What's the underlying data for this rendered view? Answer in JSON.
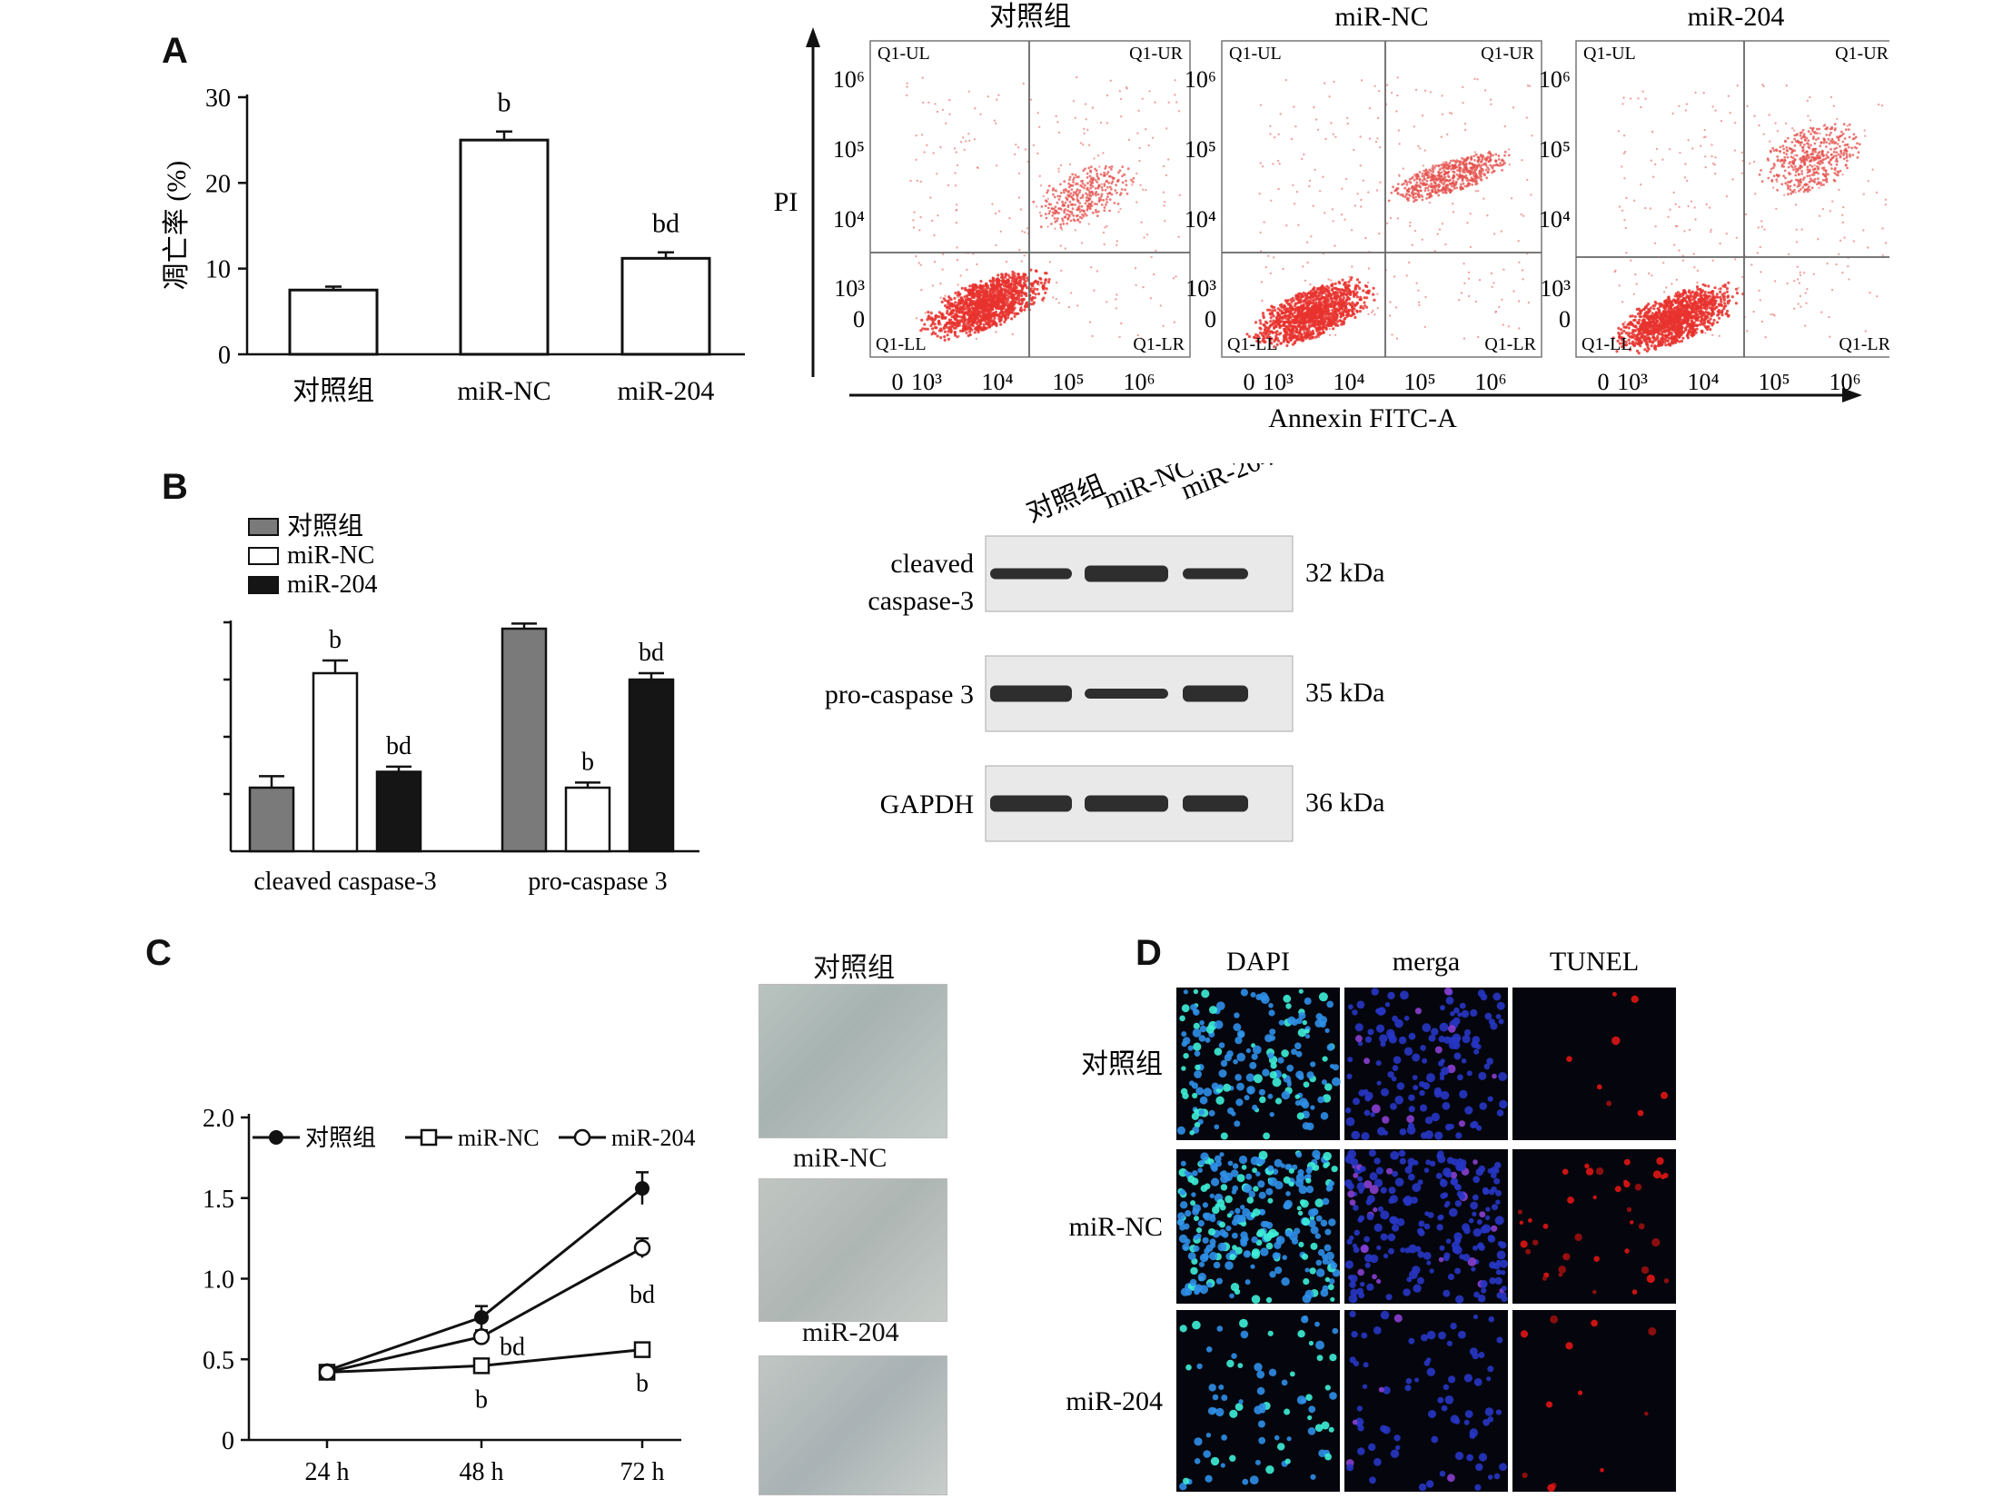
{
  "panels": {
    "a": "A",
    "b": "B",
    "c": "C",
    "d": "D"
  },
  "groups": [
    "对照组",
    "miR-NC",
    "miR-204"
  ],
  "chart_data": [
    {
      "id": "A-bar",
      "type": "bar",
      "categories": [
        "对照组",
        "miR-NC",
        "miR-204"
      ],
      "values": [
        7.5,
        25,
        11.2
      ],
      "errors": [
        0.4,
        1.0,
        0.7
      ],
      "annotations": [
        "",
        "b",
        "bd"
      ],
      "ylabel": "凋亡率 (%)",
      "yticks": [
        0,
        10,
        20,
        30
      ],
      "ylim": [
        0,
        30
      ]
    },
    {
      "id": "A-flow",
      "type": "scatter",
      "panels": [
        "对照组",
        "miR-NC",
        "miR-204"
      ],
      "xlabel": "Annexin FITC-A",
      "ylabel": "PI",
      "quadrants": [
        "Q1-UL",
        "Q1-UR",
        "Q1-LL",
        "Q1-LR"
      ],
      "ticks": [
        "0",
        "10³",
        "10⁴",
        "10⁵",
        "10⁶"
      ]
    },
    {
      "id": "B-bar",
      "type": "bar",
      "categories": [
        "cleaved caspase-3",
        "pro-caspase 3"
      ],
      "series": [
        {
          "name": "对照组",
          "color": "#7a7a7a",
          "values": [
            1.0,
            3.5
          ],
          "errors": [
            0.18,
            0.08
          ]
        },
        {
          "name": "miR-NC",
          "color": "#ffffff",
          "values": [
            2.8,
            1.0
          ],
          "errors": [
            0.2,
            0.08
          ]
        },
        {
          "name": "miR-204",
          "color": "#151515",
          "values": [
            1.25,
            2.7
          ],
          "errors": [
            0.08,
            0.1
          ]
        }
      ],
      "annotations": [
        [
          "",
          "b",
          "bd"
        ],
        [
          "",
          "b",
          "bd"
        ]
      ],
      "ylim": [
        0,
        3.6
      ],
      "legend": "top-left"
    },
    {
      "id": "C-line",
      "type": "line",
      "x": [
        "24 h",
        "48 h",
        "72 h"
      ],
      "series": [
        {
          "name": "对照组",
          "marker": "filled-circle",
          "values": [
            0.43,
            0.76,
            1.56
          ],
          "errors": [
            0.03,
            0.07,
            0.1
          ]
        },
        {
          "name": "miR-NC",
          "marker": "open-square",
          "values": [
            0.42,
            0.46,
            0.56
          ],
          "errors": [
            0.02,
            0.02,
            0.02
          ]
        },
        {
          "name": "miR-204",
          "marker": "open-circle",
          "values": [
            0.42,
            0.64,
            1.19
          ],
          "errors": [
            0.02,
            0.04,
            0.06
          ]
        }
      ],
      "annotations": [
        {
          "series": "miR-204",
          "x": "48 h",
          "text": "bd"
        },
        {
          "series": "miR-NC",
          "x": "48 h",
          "text": "b"
        },
        {
          "series": "miR-204",
          "x": "72 h",
          "text": "bd"
        },
        {
          "series": "miR-NC",
          "x": "72 h",
          "text": "b"
        }
      ],
      "yticks": [
        0,
        0.5,
        1.0,
        1.5,
        2.0
      ],
      "ytick_labels": [
        "0",
        "0.5",
        "1.0",
        "1.5",
        "2.0"
      ],
      "ylim": [
        0,
        2.0
      ],
      "legend": "top"
    }
  ],
  "western": {
    "rows": [
      {
        "label1": "cleaved",
        "label2": "caspase-3",
        "kda": "32 kDa"
      },
      {
        "label1": "pro-caspase 3",
        "label2": "",
        "kda": "35 kDa"
      },
      {
        "label1": "GAPDH",
        "label2": "",
        "kda": "36 kDa"
      }
    ]
  },
  "tunel": {
    "columns": [
      "DAPI",
      "merga",
      "TUNEL"
    ],
    "rows": [
      "对照组",
      "miR-NC",
      "miR-204"
    ]
  }
}
